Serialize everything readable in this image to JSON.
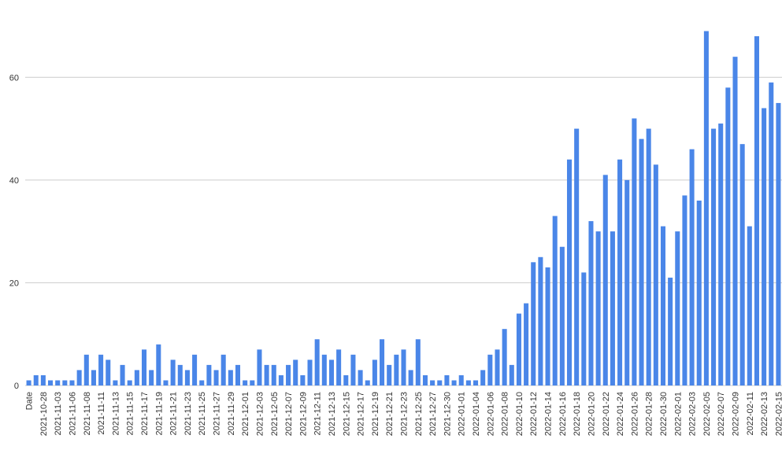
{
  "chart_data": {
    "type": "bar",
    "color": "#4a86e8",
    "grid": true,
    "ylim": [
      0,
      70
    ],
    "yticks": [
      0,
      20,
      40,
      60
    ],
    "categories": [
      "Date",
      null,
      "2021-10-28",
      null,
      "2021-11-03",
      null,
      "2021-11-06",
      null,
      "2021-11-08",
      null,
      "2021-11-11",
      null,
      "2021-11-13",
      null,
      "2021-11-15",
      null,
      "2021-11-17",
      null,
      "2021-11-19",
      null,
      "2021-11-21",
      null,
      "2021-11-23",
      null,
      "2021-11-25",
      null,
      "2021-11-27",
      null,
      "2021-11-29",
      null,
      "2021-12-01",
      null,
      "2021-12-03",
      null,
      "2021-12-05",
      null,
      "2021-12-07",
      null,
      "2021-12-09",
      null,
      "2021-12-11",
      null,
      "2021-12-13",
      null,
      "2021-12-15",
      null,
      "2021-12-17",
      null,
      "2021-12-19",
      null,
      "2021-12-21",
      null,
      "2021-12-23",
      null,
      "2021-12-25",
      null,
      "2021-12-27",
      null,
      "2021-12-30",
      null,
      "2022-01-01",
      null,
      "2022-01-04",
      null,
      "2022-01-06",
      null,
      "2022-01-08",
      null,
      "2022-01-10",
      null,
      "2022-01-12",
      null,
      "2022-01-14",
      null,
      "2022-01-16",
      null,
      "2022-01-18",
      null,
      "2022-01-20",
      null,
      "2022-01-22",
      null,
      "2022-01-24",
      null,
      "2022-01-26",
      null,
      "2022-01-28",
      null,
      "2022-01-30",
      null,
      "2022-02-01",
      null,
      "2022-02-03",
      null,
      "2022-02-05",
      null,
      "2022-02-07",
      null,
      "2022-02-09",
      null,
      "2022-02-11",
      null,
      "2022-02-13",
      null,
      "2022-02-15"
    ],
    "values": [
      1,
      2,
      2,
      1,
      1,
      1,
      1,
      3,
      6,
      3,
      6,
      5,
      1,
      4,
      1,
      3,
      7,
      3,
      8,
      1,
      5,
      4,
      3,
      6,
      1,
      4,
      3,
      6,
      3,
      4,
      1,
      1,
      7,
      4,
      4,
      2,
      4,
      5,
      2,
      5,
      9,
      6,
      5,
      7,
      2,
      6,
      3,
      1,
      5,
      9,
      4,
      6,
      7,
      3,
      9,
      2,
      1,
      1,
      2,
      1,
      2,
      1,
      1,
      3,
      6,
      7,
      11,
      4,
      14,
      16,
      24,
      25,
      23,
      33,
      27,
      44,
      50,
      22,
      32,
      30,
      41,
      30,
      44,
      40,
      52,
      48,
      50,
      43,
      31,
      21,
      30,
      37,
      46,
      36,
      69,
      50,
      51,
      58,
      64,
      47,
      31,
      68,
      54,
      59,
      55
    ]
  }
}
